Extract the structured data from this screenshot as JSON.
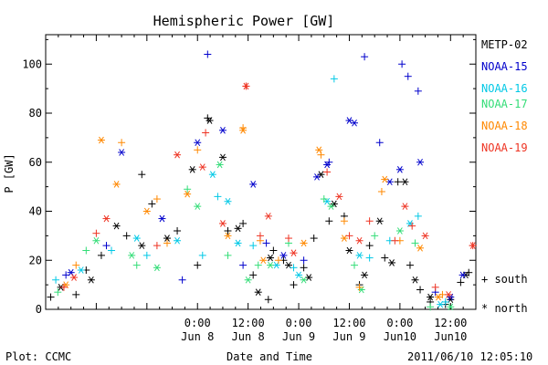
{
  "chart_data": {
    "type": "scatter",
    "title": "Hemispheric Power [GW]",
    "ylabel": "P [GW]",
    "xlabel": "Date and Time",
    "ylim": [
      0,
      112
    ],
    "xlim": [
      -1.5,
      2.75
    ],
    "yticks": [
      0,
      20,
      40,
      60,
      80,
      100
    ],
    "x_units": "days relative to 2011/06/08 00:00",
    "xticks": [
      {
        "x": 0.0,
        "time": "0:00",
        "date": "Jun 8"
      },
      {
        "x": 0.5,
        "time": "12:00",
        "date": "Jun 8"
      },
      {
        "x": 1.0,
        "time": "0:00",
        "date": "Jun 9"
      },
      {
        "x": 1.5,
        "time": "12:00",
        "date": "Jun 9"
      },
      {
        "x": 2.0,
        "time": "0:00",
        "date": "Jun10"
      },
      {
        "x": 2.5,
        "time": "12:00",
        "date": "Jun10"
      }
    ],
    "marker_key": {
      "south": "+ south",
      "north": "* north"
    },
    "series": [
      {
        "name": "METP-02",
        "color": "#000000",
        "south": [
          [
            -1.45,
            5
          ],
          [
            -1.2,
            6
          ],
          [
            -1.1,
            16
          ],
          [
            -0.95,
            22
          ],
          [
            -0.7,
            30
          ],
          [
            -0.55,
            55
          ],
          [
            -0.45,
            43
          ],
          [
            -0.2,
            32
          ],
          [
            0.0,
            18
          ],
          [
            0.1,
            78
          ],
          [
            0.3,
            32
          ],
          [
            0.45,
            35
          ],
          [
            0.55,
            14
          ],
          [
            0.7,
            4
          ],
          [
            0.75,
            24
          ],
          [
            0.85,
            20
          ],
          [
            0.95,
            10
          ],
          [
            1.05,
            17
          ],
          [
            1.15,
            29
          ],
          [
            1.3,
            36
          ],
          [
            1.45,
            38
          ],
          [
            1.6,
            10
          ],
          [
            1.7,
            26
          ],
          [
            1.85,
            21
          ],
          [
            1.98,
            52
          ],
          [
            2.1,
            18
          ],
          [
            2.2,
            8
          ],
          [
            2.3,
            3
          ],
          [
            2.45,
            2
          ],
          [
            2.6,
            11
          ],
          [
            2.68,
            15
          ]
        ],
        "north": [
          [
            -1.35,
            9
          ],
          [
            -1.05,
            12
          ],
          [
            -0.8,
            34
          ],
          [
            -0.55,
            26
          ],
          [
            -0.3,
            29
          ],
          [
            -0.05,
            57
          ],
          [
            0.12,
            77
          ],
          [
            0.25,
            62
          ],
          [
            0.4,
            33
          ],
          [
            0.6,
            7
          ],
          [
            0.72,
            21
          ],
          [
            0.9,
            18
          ],
          [
            1.1,
            13
          ],
          [
            1.22,
            55
          ],
          [
            1.35,
            43
          ],
          [
            1.5,
            24
          ],
          [
            1.65,
            14
          ],
          [
            1.8,
            36
          ],
          [
            1.92,
            19
          ],
          [
            2.05,
            52
          ],
          [
            2.15,
            12
          ],
          [
            2.3,
            5
          ],
          [
            2.5,
            4
          ],
          [
            2.65,
            14
          ]
        ]
      },
      {
        "name": "NOAA-15",
        "color": "#0000cc",
        "south": [
          [
            -1.3,
            14
          ],
          [
            -0.9,
            26
          ],
          [
            0.1,
            104
          ],
          [
            0.68,
            27
          ],
          [
            1.3,
            60
          ],
          [
            1.65,
            103
          ],
          [
            1.8,
            68
          ],
          [
            2.02,
            100
          ],
          [
            2.08,
            95
          ],
          [
            2.18,
            89
          ],
          [
            1.05,
            20
          ],
          [
            0.45,
            18
          ],
          [
            -0.15,
            12
          ],
          [
            2.35,
            7
          ]
        ],
        "north": [
          [
            -1.25,
            15
          ],
          [
            -0.75,
            64
          ],
          [
            0.0,
            68
          ],
          [
            0.25,
            73
          ],
          [
            0.55,
            51
          ],
          [
            1.18,
            54
          ],
          [
            1.28,
            59
          ],
          [
            1.5,
            77
          ],
          [
            1.55,
            76
          ],
          [
            1.9,
            52
          ],
          [
            2.0,
            57
          ],
          [
            2.2,
            60
          ],
          [
            0.85,
            22
          ],
          [
            -0.35,
            37
          ],
          [
            2.5,
            5
          ],
          [
            2.62,
            14
          ]
        ]
      },
      {
        "name": "NOAA-16",
        "color": "#00c8e6",
        "south": [
          [
            -1.4,
            12
          ],
          [
            -0.85,
            24
          ],
          [
            0.2,
            46
          ],
          [
            0.55,
            26
          ],
          [
            1.35,
            94
          ],
          [
            1.9,
            28
          ],
          [
            2.18,
            38
          ],
          [
            0.95,
            17
          ],
          [
            1.7,
            21
          ],
          [
            2.45,
            3
          ],
          [
            -0.5,
            22
          ],
          [
            0.05,
            22
          ]
        ],
        "north": [
          [
            -1.15,
            16
          ],
          [
            -0.6,
            29
          ],
          [
            0.15,
            55
          ],
          [
            0.3,
            44
          ],
          [
            0.78,
            18
          ],
          [
            1.28,
            44
          ],
          [
            1.6,
            22
          ],
          [
            2.1,
            35
          ],
          [
            2.4,
            2
          ],
          [
            1.0,
            14
          ],
          [
            0.4,
            27
          ],
          [
            -0.2,
            28
          ]
        ]
      },
      {
        "name": "NOAA-17",
        "color": "#33dd77",
        "south": [
          [
            -1.1,
            24
          ],
          [
            -0.6,
            18
          ],
          [
            -0.1,
            49
          ],
          [
            0.3,
            22
          ],
          [
            0.9,
            27
          ],
          [
            1.25,
            45
          ],
          [
            1.75,
            30
          ],
          [
            2.15,
            27
          ],
          [
            2.3,
            1
          ],
          [
            0.6,
            18
          ],
          [
            1.55,
            18
          ],
          [
            -1.38,
            7
          ]
        ],
        "north": [
          [
            -1.0,
            28
          ],
          [
            -0.65,
            22
          ],
          [
            0.0,
            42
          ],
          [
            0.22,
            59
          ],
          [
            0.72,
            18
          ],
          [
            1.32,
            42
          ],
          [
            1.62,
            8
          ],
          [
            2.0,
            32
          ],
          [
            2.5,
            1
          ],
          [
            0.5,
            12
          ],
          [
            1.05,
            12
          ],
          [
            -0.4,
            17
          ]
        ]
      },
      {
        "name": "NOAA-18",
        "color": "#ff8800",
        "south": [
          [
            -1.2,
            18
          ],
          [
            -0.75,
            68
          ],
          [
            -0.4,
            45
          ],
          [
            0.0,
            65
          ],
          [
            0.45,
            74
          ],
          [
            0.8,
            20
          ],
          [
            1.22,
            63
          ],
          [
            1.45,
            36
          ],
          [
            1.82,
            48
          ],
          [
            2.0,
            28
          ],
          [
            2.42,
            6
          ],
          [
            1.6,
            9
          ],
          [
            0.62,
            28
          ],
          [
            -0.3,
            27
          ]
        ],
        "north": [
          [
            -0.95,
            69
          ],
          [
            -0.8,
            51
          ],
          [
            -0.5,
            40
          ],
          [
            -0.1,
            47
          ],
          [
            0.45,
            73
          ],
          [
            0.65,
            20
          ],
          [
            1.2,
            65
          ],
          [
            1.45,
            29
          ],
          [
            1.85,
            53
          ],
          [
            2.2,
            25
          ],
          [
            2.38,
            5
          ],
          [
            1.05,
            27
          ],
          [
            0.3,
            30
          ],
          [
            -1.3,
            10
          ]
        ]
      },
      {
        "name": "NOAA-19",
        "color": "#ee3322",
        "south": [
          [
            -1.0,
            31
          ],
          [
            -0.4,
            26
          ],
          [
            0.08,
            72
          ],
          [
            0.48,
            91
          ],
          [
            0.9,
            29
          ],
          [
            1.28,
            56
          ],
          [
            1.7,
            36
          ],
          [
            1.95,
            28
          ],
          [
            2.12,
            34
          ],
          [
            2.35,
            9
          ],
          [
            2.72,
            26
          ],
          [
            0.62,
            30
          ],
          [
            1.5,
            30
          ],
          [
            -1.32,
            9
          ]
        ],
        "north": [
          [
            -0.9,
            37
          ],
          [
            -0.2,
            63
          ],
          [
            0.05,
            58
          ],
          [
            0.48,
            91
          ],
          [
            0.7,
            38
          ],
          [
            1.4,
            46
          ],
          [
            1.6,
            28
          ],
          [
            2.05,
            42
          ],
          [
            2.25,
            30
          ],
          [
            2.48,
            6
          ],
          [
            2.72,
            26
          ],
          [
            0.95,
            23
          ],
          [
            -1.22,
            13
          ],
          [
            0.25,
            35
          ]
        ]
      }
    ]
  },
  "legend": [
    "METP-02",
    "NOAA-15",
    "NOAA-16",
    "NOAA-17",
    "NOAA-18",
    "NOAA-19"
  ],
  "footer": {
    "left": "Plot: CCMC",
    "center": "Date and Time",
    "right": "2011/06/10 12:05:10"
  }
}
